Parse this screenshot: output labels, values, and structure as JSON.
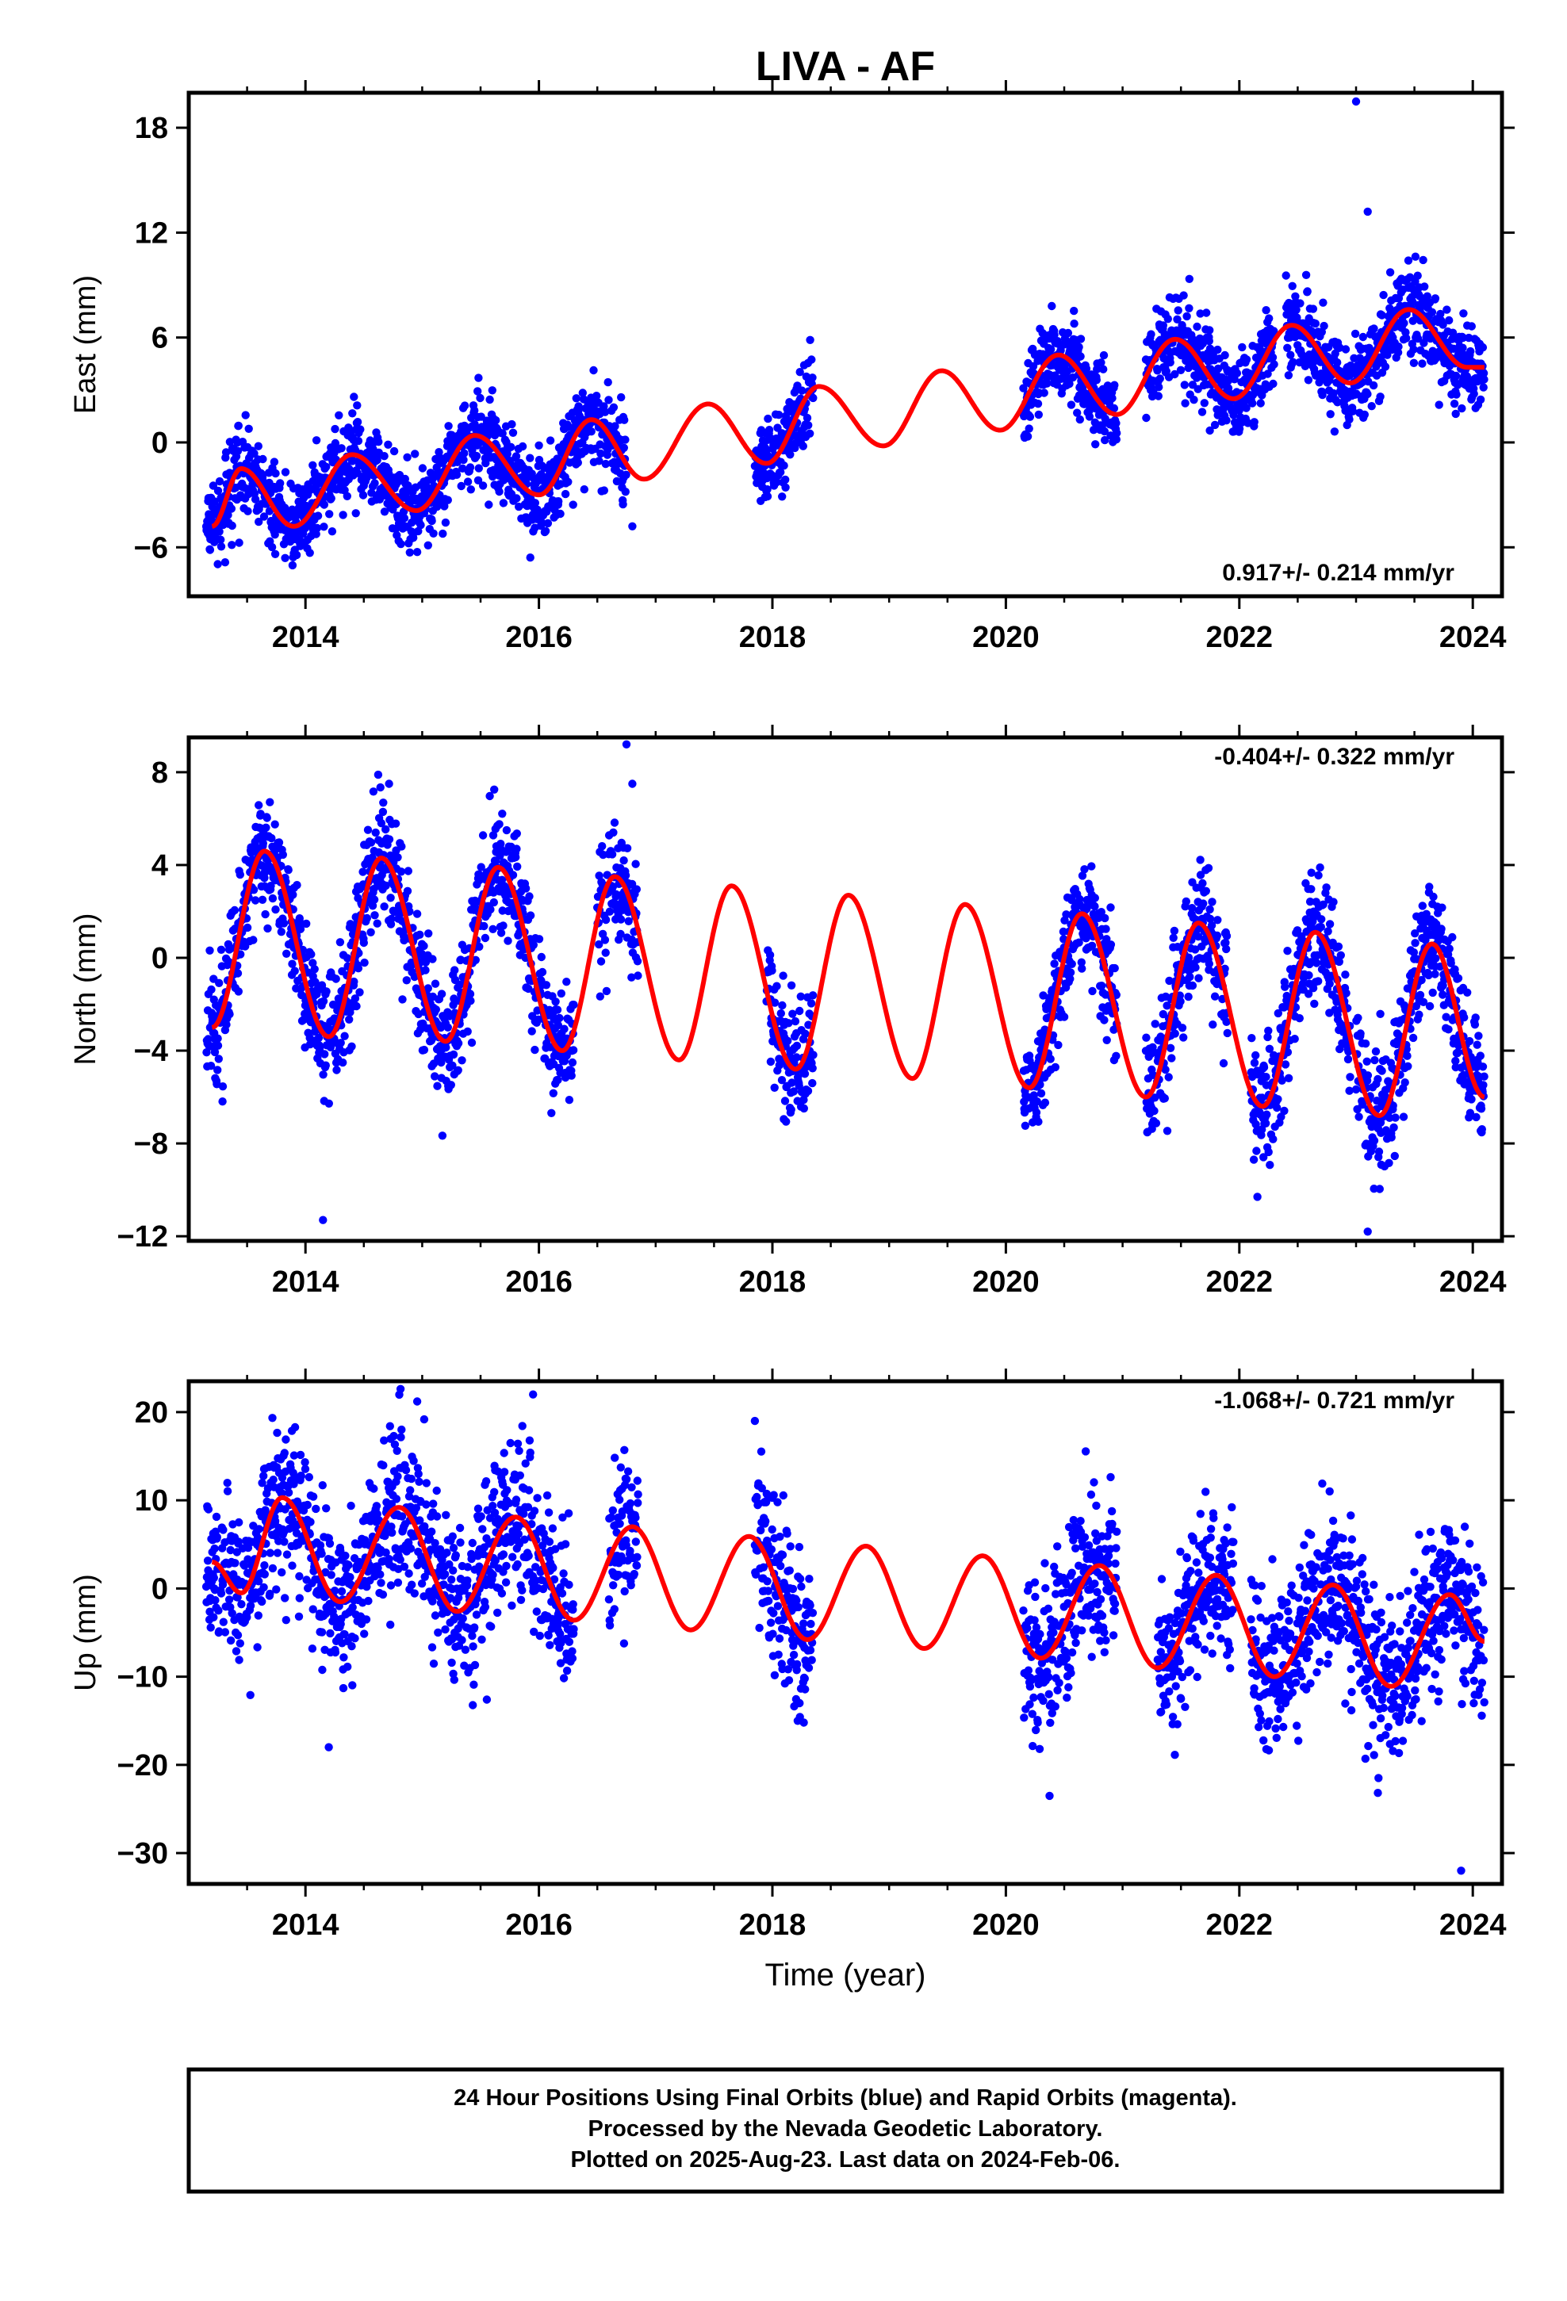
{
  "title": "LIVA - AF",
  "xlabel": "Time (year)",
  "footer": {
    "line1": "24 Hour Positions Using Final Orbits (blue) and Rapid Orbits (magenta).",
    "line2": "Processed by the Nevada Geodetic Laboratory.",
    "line3": "Plotted on 2025-Aug-23. Last data on 2024-Feb-06."
  },
  "colors": {
    "data": "#0000ff",
    "model": "#ff0000",
    "frame": "#000000"
  },
  "chart_data": [
    {
      "type": "scatter",
      "ylabel": "East (mm)",
      "rate_label": "0.917+/- 0.214 mm/yr",
      "rate_position": "bottom-right",
      "xlim": [
        2013.0,
        2024.25
      ],
      "ylim": [
        -8.8,
        20.0
      ],
      "xticks": [
        2014,
        2016,
        2018,
        2020,
        2022,
        2024
      ],
      "yticks": [
        -6,
        0,
        6,
        12,
        18
      ],
      "data_segments": [
        [
          2013.15,
          2016.75
        ],
        [
          2017.85,
          2018.35
        ],
        [
          2020.15,
          2020.95
        ],
        [
          2021.2,
          2022.3
        ],
        [
          2022.4,
          2024.1
        ]
      ],
      "data_noise_sd": 1.2,
      "outliers": [
        [
          2023.0,
          19.5
        ],
        [
          2023.1,
          13.2
        ],
        [
          2016.8,
          -4.8
        ]
      ],
      "model": {
        "series": [
          {
            "name": "",
            "values": [
              [
                2013.2,
                -4.8
              ],
              [
                2013.45,
                -1.5
              ],
              [
                2013.9,
                -4.8
              ],
              [
                2014.4,
                -0.7
              ],
              [
                2014.95,
                -3.9
              ],
              [
                2015.45,
                0.4
              ],
              [
                2016.0,
                -3.0
              ],
              [
                2016.45,
                1.3
              ],
              [
                2016.9,
                -2.1
              ],
              [
                2017.45,
                2.2
              ],
              [
                2017.95,
                -1.2
              ],
              [
                2018.4,
                3.2
              ],
              [
                2018.95,
                -0.2
              ],
              [
                2019.45,
                4.1
              ],
              [
                2019.95,
                0.7
              ],
              [
                2020.45,
                5.0
              ],
              [
                2020.95,
                1.6
              ],
              [
                2021.45,
                5.9
              ],
              [
                2021.95,
                2.5
              ],
              [
                2022.45,
                6.7
              ],
              [
                2022.95,
                3.4
              ],
              [
                2023.45,
                7.6
              ],
              [
                2023.95,
                4.3
              ],
              [
                2024.1,
                4.3
              ]
            ]
          }
        ]
      }
    },
    {
      "type": "scatter",
      "ylabel": "North (mm)",
      "rate_label": "-0.404+/- 0.322 mm/yr",
      "rate_position": "top-right",
      "xlim": [
        2013.0,
        2024.25
      ],
      "ylim": [
        -12.2,
        9.5
      ],
      "xticks": [
        2014,
        2016,
        2018,
        2020,
        2022,
        2024
      ],
      "yticks": [
        -12,
        -8,
        -4,
        0,
        4,
        8
      ],
      "data_segments": [
        [
          2013.15,
          2016.3
        ],
        [
          2016.5,
          2016.85
        ],
        [
          2017.95,
          2018.35
        ],
        [
          2020.15,
          2020.95
        ],
        [
          2021.2,
          2021.9
        ],
        [
          2022.1,
          2022.95
        ],
        [
          2023.0,
          2024.1
        ]
      ],
      "data_noise_sd": 1.3,
      "outliers": [
        [
          2016.75,
          9.2
        ],
        [
          2016.8,
          7.5
        ],
        [
          2014.15,
          -11.3
        ],
        [
          2023.1,
          -11.8
        ]
      ],
      "model": {
        "series": [
          {
            "name": "",
            "values": [
              [
                2013.2,
                -3.0
              ],
              [
                2013.65,
                4.6
              ],
              [
                2014.2,
                -3.4
              ],
              [
                2014.65,
                4.3
              ],
              [
                2015.2,
                -3.6
              ],
              [
                2015.65,
                3.9
              ],
              [
                2016.2,
                -4.0
              ],
              [
                2016.65,
                3.5
              ],
              [
                2017.2,
                -4.4
              ],
              [
                2017.65,
                3.1
              ],
              [
                2018.2,
                -4.8
              ],
              [
                2018.65,
                2.7
              ],
              [
                2019.2,
                -5.2
              ],
              [
                2019.65,
                2.3
              ],
              [
                2020.2,
                -5.6
              ],
              [
                2020.65,
                1.9
              ],
              [
                2021.2,
                -6.0
              ],
              [
                2021.65,
                1.5
              ],
              [
                2022.2,
                -6.4
              ],
              [
                2022.65,
                1.1
              ],
              [
                2023.2,
                -6.8
              ],
              [
                2023.65,
                0.6
              ],
              [
                2024.1,
                -6.0
              ]
            ]
          }
        ]
      }
    },
    {
      "type": "scatter",
      "ylabel": "Up (mm)",
      "rate_label": "-1.068+/- 0.721 mm/yr",
      "rate_position": "top-right",
      "xlim": [
        2013.0,
        2024.25
      ],
      "ylim": [
        -33.5,
        23.5
      ],
      "xticks": [
        2014,
        2016,
        2018,
        2020,
        2022,
        2024
      ],
      "yticks": [
        -30,
        -20,
        -10,
        0,
        10,
        20
      ],
      "data_segments": [
        [
          2013.15,
          2016.3
        ],
        [
          2016.6,
          2016.85
        ],
        [
          2017.85,
          2018.35
        ],
        [
          2020.15,
          2020.95
        ],
        [
          2021.3,
          2021.95
        ],
        [
          2022.1,
          2024.1
        ]
      ],
      "data_noise_sd": 4.5,
      "outliers": [
        [
          2015.95,
          22.0
        ],
        [
          2017.85,
          19.0
        ],
        [
          2023.9,
          -32.0
        ],
        [
          2014.2,
          -18.0
        ]
      ],
      "model": {
        "series": [
          {
            "name": "",
            "values": [
              [
                2013.2,
                3.0
              ],
              [
                2013.45,
                -0.5
              ],
              [
                2013.8,
                10.3
              ],
              [
                2014.3,
                -1.5
              ],
              [
                2014.8,
                9.2
              ],
              [
                2015.3,
                -2.6
              ],
              [
                2015.8,
                8.1
              ],
              [
                2016.3,
                -3.6
              ],
              [
                2016.8,
                7.0
              ],
              [
                2017.3,
                -4.7
              ],
              [
                2017.8,
                5.9
              ],
              [
                2018.3,
                -5.8
              ],
              [
                2018.8,
                4.8
              ],
              [
                2019.3,
                -6.8
              ],
              [
                2019.8,
                3.7
              ],
              [
                2020.3,
                -7.9
              ],
              [
                2020.8,
                2.6
              ],
              [
                2021.3,
                -9.0
              ],
              [
                2021.8,
                1.5
              ],
              [
                2022.3,
                -10.0
              ],
              [
                2022.8,
                0.4
              ],
              [
                2023.3,
                -11.1
              ],
              [
                2023.8,
                -0.7
              ],
              [
                2024.1,
                -6.0
              ]
            ]
          }
        ]
      }
    }
  ]
}
